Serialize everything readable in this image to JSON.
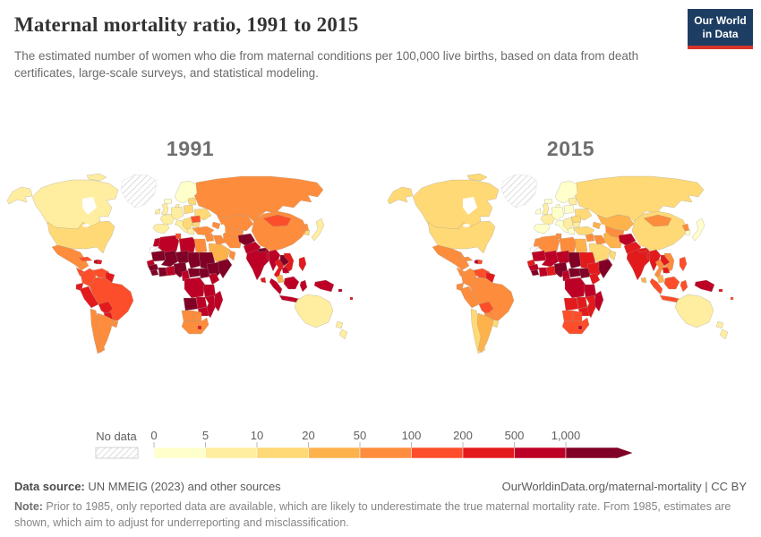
{
  "header": {
    "title": "Maternal mortality ratio, 1991 to 2015",
    "subtitle": "The estimated number of women who die from maternal conditions per 100,000 live births, based on data from death certificates, large-scale surveys, and statistical modeling.",
    "logo": {
      "line1": "Our World",
      "line2": "in Data",
      "bg_color": "#1d3d63",
      "accent_color": "#d8352b"
    }
  },
  "legend": {
    "no_data_label": "No data",
    "ticks": [
      "0",
      "5",
      "10",
      "20",
      "50",
      "100",
      "200",
      "500",
      "1,000"
    ],
    "palette": [
      "#ffffcc",
      "#ffeda0",
      "#fed976",
      "#feb24c",
      "#fd8d3c",
      "#fc4e2a",
      "#e31a1c",
      "#bd0026",
      "#800026"
    ]
  },
  "footer": {
    "source_label": "Data source:",
    "source_text": " UN MMEIG (2023) and other sources",
    "link_text": "OurWorldinData.org/maternal-mortality | CC BY",
    "note_label": "Note:",
    "note_text": " Prior to 1985, only reported data are available, which are likely to underestimate the true maternal mortality rate. From 1985, estimates are shown, which aim to adjust for underreporting and misclassification."
  },
  "chart_data": {
    "type": "choropleth_map",
    "title": "Maternal mortality ratio, 1991 to 2015",
    "unit": "maternal deaths per 100,000 live births",
    "panels": [
      "1991",
      "2015"
    ],
    "legend_bins": [
      0,
      5,
      10,
      20,
      50,
      100,
      200,
      500,
      1000
    ],
    "palette": [
      "#ffffcc",
      "#ffeda0",
      "#fed976",
      "#feb24c",
      "#fd8d3c",
      "#fc4e2a",
      "#e31a1c",
      "#bd0026",
      "#800026"
    ],
    "no_data": "No data",
    "legend_position": "bottom",
    "note": "bin index per region for each year is given in maps.panels[].bins (-1 = no data)"
  },
  "maps": {
    "panels": [
      {
        "id": "y1991",
        "label": "1991",
        "bins": {
          "russia": 4,
          "canada": 1,
          "arctic1": 1,
          "greenland": -1,
          "alaska": 1,
          "usa": 2,
          "mexico": 4,
          "centralamerica": 5,
          "cuba": 5,
          "haiti": 7,
          "dominican": 6,
          "colombia": 5,
          "venezuela": 5,
          "guyanas": 6,
          "ecuador": 6,
          "peru": 6,
          "brazil": 5,
          "bolivia": 6,
          "paraguay": 6,
          "chile": 4,
          "argentina": 4,
          "uruguay": 4,
          "iceland": 0,
          "ireland": 1,
          "uk": 1,
          "scandinavia": 0,
          "denmark": 1,
          "france": 1,
          "iberia": 1,
          "centraleurope": 1,
          "italy": 1,
          "poland": 2,
          "baltics": 2,
          "ukraine": 2,
          "romania": 5,
          "balkans": 2,
          "bulgaria": 2,
          "greece": 1,
          "turkey": 4,
          "caucasus": 4,
          "syria": 4,
          "iraq": 4,
          "iran": 4,
          "saudi": 3,
          "yemen": 6,
          "oman": 4,
          "kazakhstan": 4,
          "centralasia": 4,
          "afghanistan": 8,
          "pakistan": 7,
          "china": 4,
          "mongolia": 5,
          "india": 7,
          "nepal": 8,
          "bangladesh": 7,
          "srilanka": 6,
          "nkorea": 4,
          "skorea": 2,
          "japan": 1,
          "myanmar": 7,
          "thailand": 6,
          "laos": 8,
          "vietnam": 6,
          "cambodia": 7,
          "malaysia": 3,
          "sumatra": 7,
          "borneo": 7,
          "java": 7,
          "sulawesi": 7,
          "philippines": 6,
          "newguinea": 7,
          "solomon": 7,
          "fiji": 6,
          "australia": 1,
          "nz": 1,
          "morocco": 7,
          "westsahara": -1,
          "algeria": 7,
          "tunisia": 5,
          "libya": 7,
          "egypt": 4,
          "mauritania": 8,
          "mali": 8,
          "niger": 8,
          "chad": 8,
          "sudan": 8,
          "senegal": 7,
          "guinea": 8,
          "sierraleone": 8,
          "ivorycoast": 8,
          "ghana": 7,
          "nigeria": 8,
          "cameroon": 7,
          "car": 8,
          "southsudan": 8,
          "ethiopia": 8,
          "somalia": 8,
          "kenya": 7,
          "drc": 7,
          "tanzania": 7,
          "angola": 8,
          "zambia": 7,
          "mozambique": 7,
          "zimbabwe": 7,
          "namibia": 4,
          "botswana": 4,
          "southafrica": 4,
          "lesotho": 6,
          "madagascar": 7
        }
      },
      {
        "id": "y2015",
        "label": "2015",
        "bins": {
          "russia": 2,
          "canada": 2,
          "arctic1": 2,
          "greenland": -1,
          "alaska": 2,
          "usa": 2,
          "mexico": 4,
          "centralamerica": 4,
          "cuba": 4,
          "haiti": 7,
          "dominican": 5,
          "colombia": 4,
          "venezuela": 5,
          "guyanas": 6,
          "ecuador": 4,
          "peru": 4,
          "brazil": 4,
          "bolivia": 5,
          "paraguay": 4,
          "chile": 2,
          "argentina": 3,
          "uruguay": 2,
          "iceland": 0,
          "ireland": 0,
          "uk": 1,
          "scandinavia": 0,
          "denmark": 0,
          "france": 1,
          "iberia": 0,
          "centraleurope": 0,
          "italy": 0,
          "poland": 0,
          "baltics": 1,
          "ukraine": 2,
          "romania": 2,
          "balkans": 1,
          "bulgaria": 1,
          "greece": 0,
          "turkey": 2,
          "caucasus": 3,
          "syria": 4,
          "iraq": 4,
          "iran": 3,
          "saudi": 2,
          "yemen": 6,
          "oman": 2,
          "kazakhstan": 3,
          "centralasia": 4,
          "afghanistan": 7,
          "pakistan": 6,
          "china": 2,
          "mongolia": 4,
          "india": 6,
          "nepal": 6,
          "bangladesh": 6,
          "srilanka": 3,
          "nkorea": 4,
          "skorea": 0,
          "japan": 0,
          "myanmar": 6,
          "thailand": 4,
          "laos": 6,
          "vietnam": 4,
          "cambodia": 6,
          "malaysia": 3,
          "sumatra": 5,
          "borneo": 5,
          "java": 5,
          "sulawesi": 5,
          "philippines": 5,
          "newguinea": 7,
          "solomon": 6,
          "fiji": 5,
          "australia": 1,
          "nz": 1,
          "morocco": 4,
          "westsahara": -1,
          "algeria": 4,
          "tunisia": 4,
          "libya": 4,
          "egypt": 3,
          "mauritania": 7,
          "mali": 7,
          "niger": 7,
          "chad": 8,
          "sudan": 6,
          "senegal": 6,
          "guinea": 7,
          "sierraleone": 8,
          "ivorycoast": 7,
          "ghana": 6,
          "nigeria": 8,
          "cameroon": 7,
          "car": 8,
          "southsudan": 8,
          "ethiopia": 6,
          "somalia": 8,
          "kenya": 6,
          "drc": 7,
          "tanzania": 7,
          "angola": 6,
          "zambia": 6,
          "mozambique": 6,
          "zimbabwe": 6,
          "namibia": 5,
          "botswana": 5,
          "southafrica": 5,
          "lesotho": 7,
          "madagascar": 7
        }
      }
    ]
  }
}
